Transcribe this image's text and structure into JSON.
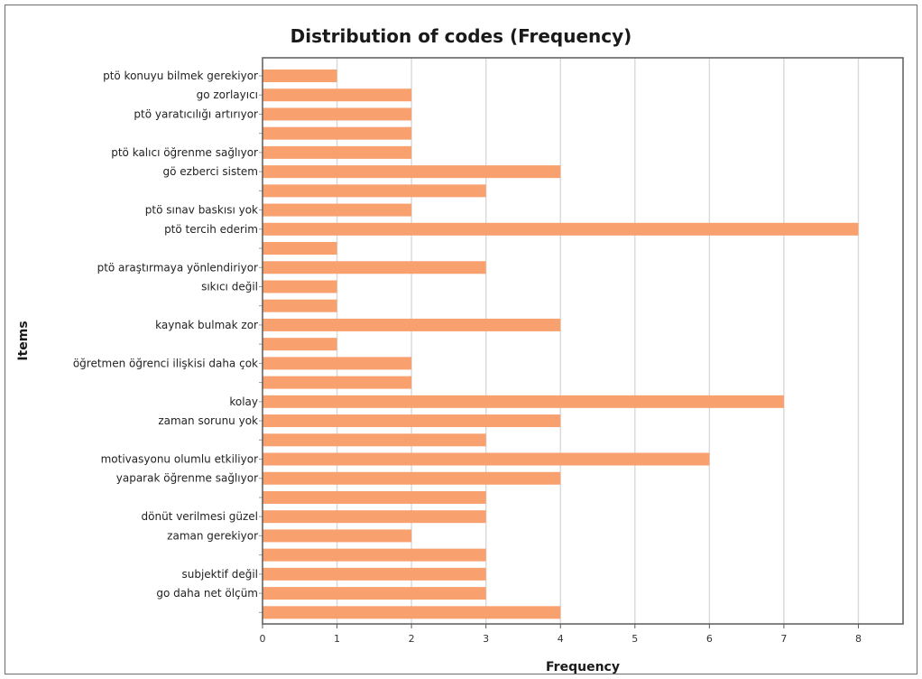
{
  "chart_data": {
    "type": "bar",
    "orientation": "horizontal",
    "title": "Distribution of codes (Frequency)",
    "xlabel": "Frequency",
    "ylabel": "Items",
    "xlim": [
      0,
      8.6
    ],
    "x_ticks": [
      "0",
      "1",
      "2",
      "3",
      "4",
      "5",
      "6",
      "7",
      "8"
    ],
    "grid": "vertical",
    "bar_color": "#f9a06f",
    "categories": [
      "ptö konuyu bilmek gerekiyor",
      "go zorlayıcı",
      "ptö yaratıcılığı artırıyor",
      "",
      "ptö kalıcı öğrenme sağlıyor",
      "gö ezberci sistem",
      "",
      "ptö sınav baskısı yok",
      "ptö tercih ederim",
      "",
      "ptö araştırmaya yönlendiriyor",
      "sıkıcı değil",
      "",
      "kaynak bulmak zor",
      "",
      "öğretmen öğrenci ilişkisi daha çok",
      "",
      "kolay",
      "zaman sorunu yok",
      "",
      "motivasyonu olumlu etkiliyor",
      "yaparak öğrenme sağlıyor",
      "",
      "dönüt verilmesi güzel",
      "zaman gerekiyor",
      "",
      "subjektif değil",
      "go daha net ölçüm",
      ""
    ],
    "values": [
      1,
      2,
      2,
      2,
      2,
      4,
      3,
      2,
      8,
      1,
      3,
      1,
      1,
      4,
      1,
      2,
      2,
      7,
      4,
      3,
      6,
      4,
      3,
      3,
      2,
      3,
      3,
      3,
      4
    ]
  }
}
